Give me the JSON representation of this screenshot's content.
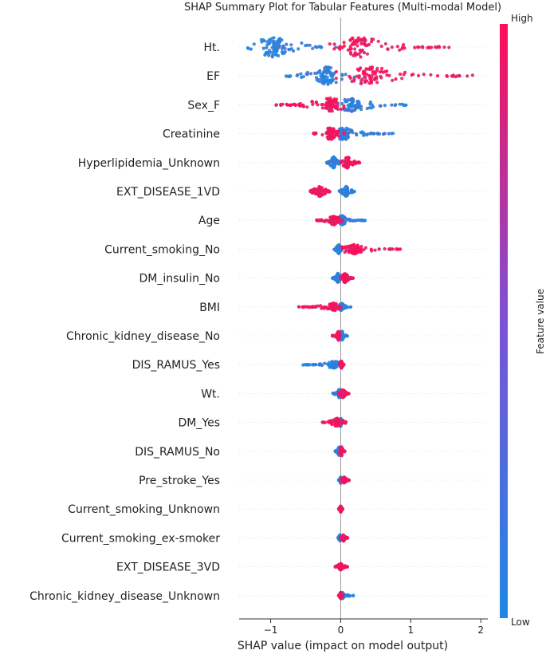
{
  "chart_data": {
    "type": "scatter",
    "subtype": "shap_beeswarm",
    "title": "SHAP Summary Plot for Tabular Features (Multi-modal Model)",
    "xlabel": "SHAP value (impact on model output)",
    "xlim": [
      -1.45,
      2.1
    ],
    "xticks": [
      -1,
      0,
      1,
      2
    ],
    "xtick_labels": [
      "−1",
      "0",
      "1",
      "2"
    ],
    "zero_line": true,
    "colorbar": {
      "label": "Feature value",
      "high_label": "High",
      "low_label": "Low",
      "low_color": "#1e88e5",
      "high_color": "#ff0d57"
    },
    "features": [
      {
        "name": "Ht.",
        "low_range": [
          -1.35,
          -0.05
        ],
        "high_range": [
          -0.2,
          1.55
        ],
        "low_center": -0.95,
        "high_center": 0.25,
        "spread": 1.0
      },
      {
        "name": "EF",
        "low_range": [
          -0.8,
          0.2
        ],
        "high_range": [
          -0.1,
          2.0
        ],
        "low_center": -0.2,
        "high_center": 0.4,
        "spread": 0.9
      },
      {
        "name": "Sex_F",
        "low_range": [
          -0.1,
          0.95
        ],
        "high_range": [
          -0.95,
          0.1
        ],
        "low_center": 0.15,
        "high_center": -0.15,
        "spread": 0.65
      },
      {
        "name": "Creatinine",
        "low_range": [
          -0.05,
          0.75
        ],
        "high_range": [
          -0.4,
          0.05
        ],
        "low_center": 0.05,
        "high_center": -0.15,
        "spread": 0.6
      },
      {
        "name": "Hyperlipidemia_Unknown",
        "low_range": [
          -0.2,
          0.0
        ],
        "high_range": [
          0.0,
          0.28
        ],
        "low_center": -0.1,
        "high_center": 0.1,
        "spread": 0.55
      },
      {
        "name": "EXT_DISEASE_1VD",
        "low_range": [
          -0.02,
          0.2
        ],
        "high_range": [
          -0.45,
          -0.15
        ],
        "low_center": 0.08,
        "high_center": -0.3,
        "spread": 0.5
      },
      {
        "name": "Age",
        "low_range": [
          -0.05,
          0.35
        ],
        "high_range": [
          -0.35,
          0.05
        ],
        "low_center": 0.02,
        "high_center": -0.1,
        "spread": 0.45
      },
      {
        "name": "Current_smoking_No",
        "low_range": [
          -0.1,
          0.02
        ],
        "high_range": [
          0.02,
          0.85
        ],
        "low_center": -0.03,
        "high_center": 0.2,
        "spread": 0.45
      },
      {
        "name": "DM_insulin_No",
        "low_range": [
          -0.12,
          0.02
        ],
        "high_range": [
          0.0,
          0.18
        ],
        "low_center": -0.04,
        "high_center": 0.06,
        "spread": 0.45
      },
      {
        "name": "BMI",
        "low_range": [
          -0.03,
          0.18
        ],
        "high_range": [
          -0.6,
          0.02
        ],
        "low_center": 0.01,
        "high_center": -0.1,
        "spread": 0.35
      },
      {
        "name": "Chronic_kidney_disease_No",
        "low_range": [
          -0.02,
          0.1
        ],
        "high_range": [
          -0.12,
          0.0
        ],
        "low_center": 0.02,
        "high_center": -0.03,
        "spread": 0.45
      },
      {
        "name": "DIS_RAMUS_Yes",
        "low_range": [
          -0.55,
          -0.02
        ],
        "high_range": [
          -0.02,
          0.05
        ],
        "low_center": -0.1,
        "high_center": 0.01,
        "spread": 0.35
      },
      {
        "name": "Wt.",
        "low_range": [
          -0.12,
          0.04
        ],
        "high_range": [
          -0.03,
          0.12
        ],
        "low_center": -0.02,
        "high_center": 0.03,
        "spread": 0.4
      },
      {
        "name": "DM_Yes",
        "low_range": [
          -0.02,
          0.04
        ],
        "high_range": [
          -0.28,
          0.08
        ],
        "low_center": 0.0,
        "high_center": -0.05,
        "spread": 0.4
      },
      {
        "name": "DIS_RAMUS_No",
        "low_range": [
          -0.08,
          0.02
        ],
        "high_range": [
          -0.02,
          0.06
        ],
        "low_center": -0.02,
        "high_center": 0.01,
        "spread": 0.45
      },
      {
        "name": "Pre_stroke_Yes",
        "low_range": [
          -0.03,
          0.03
        ],
        "high_range": [
          0.0,
          0.12
        ],
        "low_center": 0.0,
        "high_center": 0.05,
        "spread": 0.3
      },
      {
        "name": "Current_smoking_Unknown",
        "low_range": [
          -0.03,
          0.03
        ],
        "high_range": [
          -0.03,
          0.03
        ],
        "low_center": 0.0,
        "high_center": 0.0,
        "spread": 0.3
      },
      {
        "name": "Current_smoking_ex-smoker",
        "low_range": [
          -0.04,
          0.02
        ],
        "high_range": [
          0.0,
          0.1
        ],
        "low_center": -0.01,
        "high_center": 0.04,
        "spread": 0.3
      },
      {
        "name": "EXT_DISEASE_3VD",
        "low_range": [
          -0.03,
          0.02
        ],
        "high_range": [
          -0.08,
          0.1
        ],
        "low_center": 0.0,
        "high_center": 0.0,
        "spread": 0.3
      },
      {
        "name": "Chronic_kidney_disease_Unknown",
        "low_range": [
          0.0,
          0.22
        ],
        "high_range": [
          -0.03,
          0.03
        ],
        "low_center": 0.02,
        "high_center": 0.0,
        "spread": 0.3
      }
    ]
  }
}
